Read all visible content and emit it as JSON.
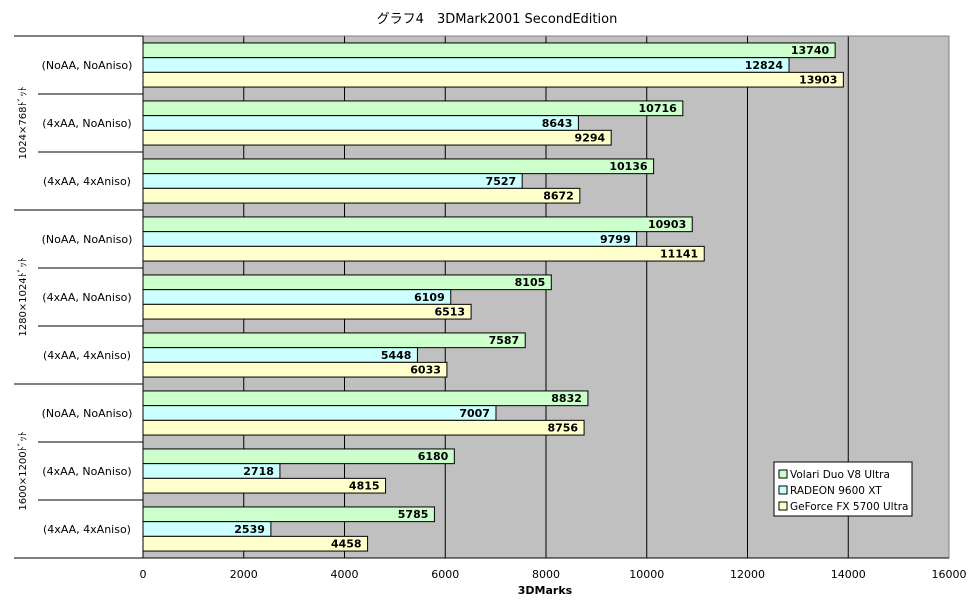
{
  "chart_data": {
    "type": "bar",
    "orientation": "horizontal",
    "title": "グラフ4　3DMark2001 SecondEdition",
    "xlabel": "3DMarks",
    "ylabel": "",
    "xlim": [
      0,
      16000
    ],
    "x_ticks": [
      "0",
      "2000",
      "4000",
      "6000",
      "8000",
      "10000",
      "12000",
      "14000",
      "16000"
    ],
    "grid": "vertical",
    "legend_position": "bottom-right",
    "groups": [
      {
        "label": "1024×768ﾄﾞｯﾄ",
        "subcategories": [
          "(NoAA, NoAniso)",
          "(4xAA, NoAniso)",
          "(4xAA, 4xAniso)"
        ]
      },
      {
        "label": "1280×1024ﾄﾞｯﾄ",
        "subcategories": [
          "(NoAA, NoAniso)",
          "(4xAA, NoAniso)",
          "(4xAA, 4xAniso)"
        ]
      },
      {
        "label": "1600×1200ﾄﾞｯﾄ",
        "subcategories": [
          "(NoAA, NoAniso)",
          "(4xAA, NoAniso)",
          "(4xAA, 4xAniso)"
        ]
      }
    ],
    "series": [
      {
        "name": "Volari Duo V8 Ultra",
        "color": "#CCFFCC",
        "values": [
          13740,
          10716,
          10136,
          10903,
          8105,
          7587,
          8832,
          6180,
          5785
        ]
      },
      {
        "name": "RADEON 9600 XT",
        "color": "#CCFFFF",
        "values": [
          12824,
          8643,
          7527,
          9799,
          6109,
          5448,
          7007,
          2718,
          2539
        ]
      },
      {
        "name": "GeForce FX 5700 Ultra",
        "color": "#FFFFCC",
        "values": [
          13903,
          9294,
          8672,
          11141,
          6513,
          6033,
          8756,
          4815,
          4458
        ]
      }
    ],
    "plot_background": "#C0C0C0"
  }
}
